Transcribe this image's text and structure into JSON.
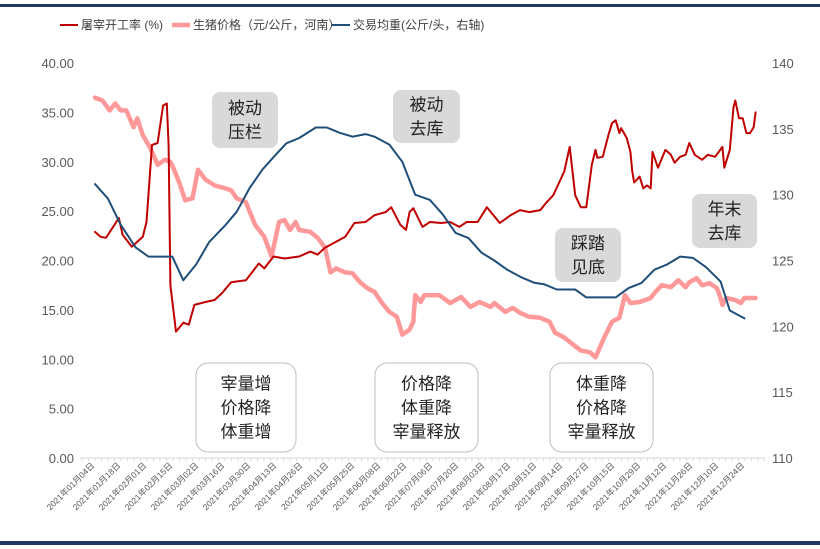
{
  "chart_data": {
    "type": "line",
    "title": "",
    "legend": {
      "placement": "top"
    },
    "grid": false,
    "x_tick_labels": [
      "2021年01月04日",
      "2021年01月18日",
      "2021年02月01日",
      "2021年02月15日",
      "2021年03月02日",
      "2021年03月16日",
      "2021年03月30日",
      "2021年04月13日",
      "2021年04月26日",
      "2021年05月11日",
      "2021年05月25日",
      "2021年06月08日",
      "2021年06月22日",
      "2021年07月06日",
      "2021年07月20日",
      "2021年08月03日",
      "2021年08月17日",
      "2021年08月31日",
      "2021年09月14日",
      "2021年09月27日",
      "2021年10月15日",
      "2021年10月29日",
      "2021年11月12日",
      "2021年11月26日",
      "2021年12月10日",
      "2021年12月24日"
    ],
    "y_left": {
      "min": 0,
      "max": 40,
      "ticks": [
        "0.00",
        "5.00",
        "10.00",
        "15.00",
        "20.00",
        "25.00",
        "30.00",
        "35.00",
        "40.00"
      ]
    },
    "y_right": {
      "min": 110,
      "max": 140,
      "ticks": [
        "110",
        "115",
        "120",
        "125",
        "130",
        "135",
        "140"
      ]
    },
    "series": [
      {
        "name": "屠宰开工率 (%)",
        "axis": "left",
        "color": "#c00000",
        "width": 2,
        "points": [
          [
            "2021-01-04",
            22.9
          ],
          [
            "2021-01-07",
            22.4
          ],
          [
            "2021-01-10",
            22.3
          ],
          [
            "2021-01-17",
            24.3
          ],
          [
            "2021-01-19",
            22.6
          ],
          [
            "2021-01-24",
            21.4
          ],
          [
            "2021-01-30",
            22.4
          ],
          [
            "2021-02-01",
            23.9
          ],
          [
            "2021-02-04",
            31.7
          ],
          [
            "2021-02-07",
            31.9
          ],
          [
            "2021-02-10",
            35.7
          ],
          [
            "2021-02-12",
            35.9
          ],
          [
            "2021-02-13",
            31.7
          ],
          [
            "2021-02-14",
            17.5
          ],
          [
            "2021-02-17",
            12.8
          ],
          [
            "2021-02-21",
            13.7
          ],
          [
            "2021-02-24",
            13.5
          ],
          [
            "2021-02-27",
            15.5
          ],
          [
            "2021-03-05",
            15.8
          ],
          [
            "2021-03-10",
            16.0
          ],
          [
            "2021-03-14",
            16.7
          ],
          [
            "2021-03-19",
            17.8
          ],
          [
            "2021-03-27",
            18.0
          ],
          [
            "2021-04-03",
            19.7
          ],
          [
            "2021-04-06",
            19.2
          ],
          [
            "2021-04-11",
            20.4
          ],
          [
            "2021-04-17",
            20.2
          ],
          [
            "2021-04-25",
            20.4
          ],
          [
            "2021-05-01",
            20.9
          ],
          [
            "2021-05-05",
            20.6
          ],
          [
            "2021-05-09",
            21.3
          ],
          [
            "2021-05-14",
            21.8
          ],
          [
            "2021-05-20",
            22.4
          ],
          [
            "2021-05-25",
            23.8
          ],
          [
            "2021-05-31",
            23.9
          ],
          [
            "2021-06-05",
            24.6
          ],
          [
            "2021-06-11",
            24.9
          ],
          [
            "2021-06-14",
            25.4
          ],
          [
            "2021-06-19",
            23.6
          ],
          [
            "2021-06-22",
            23.1
          ],
          [
            "2021-06-24",
            24.9
          ],
          [
            "2021-06-26",
            25.3
          ],
          [
            "2021-07-01",
            23.4
          ],
          [
            "2021-07-05",
            23.9
          ],
          [
            "2021-07-11",
            23.8
          ],
          [
            "2021-07-16",
            23.9
          ],
          [
            "2021-07-21",
            23.4
          ],
          [
            "2021-07-25",
            23.9
          ],
          [
            "2021-07-31",
            23.9
          ],
          [
            "2021-08-05",
            25.4
          ],
          [
            "2021-08-12",
            23.8
          ],
          [
            "2021-08-18",
            24.6
          ],
          [
            "2021-08-23",
            25.1
          ],
          [
            "2021-08-28",
            24.9
          ],
          [
            "2021-09-03",
            25.1
          ],
          [
            "2021-09-06",
            25.8
          ],
          [
            "2021-09-10",
            26.6
          ],
          [
            "2021-09-13",
            27.8
          ],
          [
            "2021-09-16",
            29.0
          ],
          [
            "2021-09-19",
            31.5
          ],
          [
            "2021-09-22",
            26.6
          ],
          [
            "2021-09-25",
            25.4
          ],
          [
            "2021-09-28",
            25.4
          ],
          [
            "2021-10-01",
            29.7
          ],
          [
            "2021-10-03",
            31.2
          ],
          [
            "2021-10-04",
            30.4
          ],
          [
            "2021-10-07",
            30.5
          ],
          [
            "2021-10-10",
            32.7
          ],
          [
            "2021-10-12",
            33.9
          ],
          [
            "2021-10-14",
            34.2
          ],
          [
            "2021-10-16",
            32.9
          ],
          [
            "2021-10-17",
            33.4
          ],
          [
            "2021-10-20",
            32.4
          ],
          [
            "2021-10-22",
            31.0
          ],
          [
            "2021-10-23",
            29.0
          ],
          [
            "2021-10-24",
            27.9
          ],
          [
            "2021-10-27",
            28.5
          ],
          [
            "2021-10-29",
            27.3
          ],
          [
            "2021-10-31",
            27.6
          ],
          [
            "2021-11-02",
            27.3
          ],
          [
            "2021-11-03",
            31.0
          ],
          [
            "2021-11-06",
            29.4
          ],
          [
            "2021-11-10",
            31.2
          ],
          [
            "2021-11-13",
            30.7
          ],
          [
            "2021-11-15",
            29.9
          ],
          [
            "2021-11-18",
            30.5
          ],
          [
            "2021-11-21",
            30.7
          ],
          [
            "2021-11-23",
            31.9
          ],
          [
            "2021-11-26",
            30.7
          ],
          [
            "2021-11-30",
            30.2
          ],
          [
            "2021-12-03",
            30.7
          ],
          [
            "2021-12-07",
            30.5
          ],
          [
            "2021-12-11",
            31.5
          ],
          [
            "2021-12-12",
            29.4
          ],
          [
            "2021-12-15",
            31.2
          ],
          [
            "2021-12-17",
            35.5
          ],
          [
            "2021-12-18",
            36.2
          ],
          [
            "2021-12-20",
            34.4
          ],
          [
            "2021-12-22",
            34.4
          ],
          [
            "2021-12-24",
            32.9
          ],
          [
            "2021-12-26",
            32.9
          ],
          [
            "2021-12-28",
            33.5
          ],
          [
            "2021-12-29",
            35.0
          ]
        ]
      },
      {
        "name": "生猪价格（元/公斤，河南）",
        "axis": "left",
        "color": "#ff9999",
        "width": 4.5,
        "points": [
          [
            "2021-01-04",
            36.5
          ],
          [
            "2021-01-08",
            36.2
          ],
          [
            "2021-01-12",
            35.2
          ],
          [
            "2021-01-15",
            35.9
          ],
          [
            "2021-01-18",
            35.2
          ],
          [
            "2021-01-21",
            35.2
          ],
          [
            "2021-01-25",
            33.5
          ],
          [
            "2021-01-27",
            34.4
          ],
          [
            "2021-01-30",
            32.7
          ],
          [
            "2021-02-03",
            31.4
          ],
          [
            "2021-02-07",
            29.7
          ],
          [
            "2021-02-11",
            30.2
          ],
          [
            "2021-02-14",
            30.0
          ],
          [
            "2021-02-16",
            29.2
          ],
          [
            "2021-02-19",
            27.8
          ],
          [
            "2021-02-22",
            26.1
          ],
          [
            "2021-02-26",
            26.3
          ],
          [
            "2021-03-01",
            29.2
          ],
          [
            "2021-03-05",
            28.2
          ],
          [
            "2021-03-10",
            27.6
          ],
          [
            "2021-03-16",
            27.3
          ],
          [
            "2021-03-19",
            27.1
          ],
          [
            "2021-03-22",
            26.3
          ],
          [
            "2021-03-27",
            25.9
          ],
          [
            "2021-04-01",
            23.6
          ],
          [
            "2021-04-06",
            22.4
          ],
          [
            "2021-04-10",
            20.4
          ],
          [
            "2021-04-14",
            23.9
          ],
          [
            "2021-04-17",
            24.1
          ],
          [
            "2021-04-20",
            23.1
          ],
          [
            "2021-04-23",
            23.9
          ],
          [
            "2021-04-25",
            23.1
          ],
          [
            "2021-05-01",
            22.9
          ],
          [
            "2021-05-05",
            22.3
          ],
          [
            "2021-05-09",
            21.3
          ],
          [
            "2021-05-12",
            18.8
          ],
          [
            "2021-05-15",
            19.2
          ],
          [
            "2021-05-20",
            18.8
          ],
          [
            "2021-05-24",
            18.7
          ],
          [
            "2021-05-28",
            17.8
          ],
          [
            "2021-06-01",
            17.2
          ],
          [
            "2021-06-05",
            16.8
          ],
          [
            "2021-06-09",
            15.7
          ],
          [
            "2021-06-13",
            14.8
          ],
          [
            "2021-06-17",
            14.3
          ],
          [
            "2021-06-20",
            12.5
          ],
          [
            "2021-06-24",
            13.0
          ],
          [
            "2021-06-26",
            13.8
          ],
          [
            "2021-06-27",
            16.5
          ],
          [
            "2021-06-30",
            15.8
          ],
          [
            "2021-07-02",
            16.5
          ],
          [
            "2021-07-10",
            16.5
          ],
          [
            "2021-07-16",
            15.7
          ],
          [
            "2021-07-22",
            16.3
          ],
          [
            "2021-07-27",
            15.3
          ],
          [
            "2021-08-01",
            15.8
          ],
          [
            "2021-08-07",
            15.3
          ],
          [
            "2021-08-09",
            15.7
          ],
          [
            "2021-08-15",
            14.8
          ],
          [
            "2021-08-19",
            15.2
          ],
          [
            "2021-08-23",
            14.7
          ],
          [
            "2021-08-28",
            14.3
          ],
          [
            "2021-09-03",
            14.2
          ],
          [
            "2021-09-08",
            13.8
          ],
          [
            "2021-09-11",
            12.7
          ],
          [
            "2021-09-16",
            12.2
          ],
          [
            "2021-09-20",
            11.6
          ],
          [
            "2021-09-25",
            10.9
          ],
          [
            "2021-09-30",
            10.7
          ],
          [
            "2021-10-03",
            10.2
          ],
          [
            "2021-10-08",
            12.3
          ],
          [
            "2021-10-12",
            13.8
          ],
          [
            "2021-10-16",
            14.2
          ],
          [
            "2021-10-19",
            16.5
          ],
          [
            "2021-10-22",
            15.7
          ],
          [
            "2021-10-27",
            15.8
          ],
          [
            "2021-11-02",
            16.2
          ],
          [
            "2021-11-04",
            16.7
          ],
          [
            "2021-11-08",
            17.5
          ],
          [
            "2021-11-13",
            17.3
          ],
          [
            "2021-11-17",
            18.0
          ],
          [
            "2021-11-21",
            17.3
          ],
          [
            "2021-11-23",
            17.8
          ],
          [
            "2021-11-27",
            18.2
          ],
          [
            "2021-11-30",
            17.5
          ],
          [
            "2021-12-04",
            17.7
          ],
          [
            "2021-12-08",
            17.2
          ],
          [
            "2021-12-10",
            16.2
          ],
          [
            "2021-12-11",
            15.5
          ],
          [
            "2021-12-13",
            16.2
          ],
          [
            "2021-12-18",
            16.0
          ],
          [
            "2021-12-21",
            15.7
          ],
          [
            "2021-12-23",
            16.2
          ],
          [
            "2021-12-26",
            16.2
          ],
          [
            "2021-12-29",
            16.2
          ]
        ]
      },
      {
        "name": "交易均重(公斤/头，右轴)",
        "axis": "right",
        "color": "#1f4e79",
        "width": 2,
        "points": [
          [
            "2021-01-04",
            130.8
          ],
          [
            "2021-01-11",
            129.7
          ],
          [
            "2021-01-18",
            127.7
          ],
          [
            "2021-01-26",
            126.0
          ],
          [
            "2021-02-02",
            125.3
          ],
          [
            "2021-02-15",
            125.3
          ],
          [
            "2021-02-21",
            123.5
          ],
          [
            "2021-02-28",
            124.7
          ],
          [
            "2021-03-07",
            126.4
          ],
          [
            "2021-03-16",
            127.7
          ],
          [
            "2021-03-22",
            128.7
          ],
          [
            "2021-03-29",
            130.5
          ],
          [
            "2021-04-05",
            131.9
          ],
          [
            "2021-04-12",
            133.0
          ],
          [
            "2021-04-18",
            133.9
          ],
          [
            "2021-04-25",
            134.3
          ],
          [
            "2021-05-04",
            135.1
          ],
          [
            "2021-05-10",
            135.1
          ],
          [
            "2021-05-17",
            134.7
          ],
          [
            "2021-05-24",
            134.4
          ],
          [
            "2021-05-31",
            134.6
          ],
          [
            "2021-06-05",
            134.4
          ],
          [
            "2021-06-13",
            133.8
          ],
          [
            "2021-06-20",
            132.5
          ],
          [
            "2021-06-27",
            130.0
          ],
          [
            "2021-07-05",
            129.6
          ],
          [
            "2021-07-12",
            128.5
          ],
          [
            "2021-07-19",
            127.1
          ],
          [
            "2021-07-26",
            126.7
          ],
          [
            "2021-08-02",
            125.6
          ],
          [
            "2021-08-09",
            125.0
          ],
          [
            "2021-08-16",
            124.3
          ],
          [
            "2021-08-24",
            123.7
          ],
          [
            "2021-08-31",
            123.3
          ],
          [
            "2021-09-05",
            123.2
          ],
          [
            "2021-09-12",
            122.8
          ],
          [
            "2021-09-22",
            122.8
          ],
          [
            "2021-09-28",
            122.2
          ],
          [
            "2021-10-14",
            122.2
          ],
          [
            "2021-10-21",
            122.9
          ],
          [
            "2021-10-28",
            123.3
          ],
          [
            "2021-11-04",
            124.3
          ],
          [
            "2021-11-11",
            124.7
          ],
          [
            "2021-11-18",
            125.3
          ],
          [
            "2021-11-25",
            125.2
          ],
          [
            "2021-12-02",
            124.5
          ],
          [
            "2021-12-10",
            123.4
          ],
          [
            "2021-12-15",
            121.2
          ],
          [
            "2021-12-23",
            120.6
          ]
        ]
      }
    ],
    "annotations": [
      {
        "lines": [
          "被动",
          "压栏"
        ],
        "style": "gray"
      },
      {
        "lines": [
          "被动",
          "去库"
        ],
        "style": "gray"
      },
      {
        "lines": [
          "踩踏",
          "见底"
        ],
        "style": "gray"
      },
      {
        "lines": [
          "年末",
          "去库"
        ],
        "style": "gray"
      },
      {
        "lines": [
          "宰量增",
          "价格降",
          "体重增"
        ],
        "style": "outline"
      },
      {
        "lines": [
          "价格降",
          "体重降",
          "宰量释放"
        ],
        "style": "outline"
      },
      {
        "lines": [
          "体重降",
          "价格降",
          "宰量释放"
        ],
        "style": "outline"
      }
    ]
  }
}
